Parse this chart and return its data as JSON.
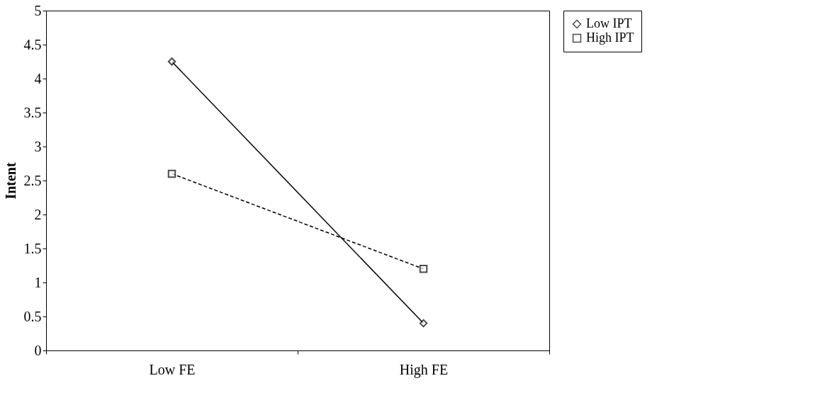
{
  "chart_data": {
    "type": "line",
    "ylabel": "Intent",
    "categories": [
      "Low FE",
      "High FE"
    ],
    "series": [
      {
        "name": "Low IPT",
        "color": "#000000",
        "values": [
          4.25,
          0.4
        ],
        "marker": "diamond",
        "line_style": "solid"
      },
      {
        "name": "High IPT",
        "color": "#000000",
        "values": [
          2.6,
          1.2
        ],
        "marker": "square",
        "line_style": "dashed"
      }
    ],
    "ylim": [
      0,
      5
    ],
    "yticks": [
      0,
      0.5,
      1,
      1.5,
      2,
      2.5,
      3,
      3.5,
      4,
      4.5,
      5
    ],
    "grid": false,
    "legend": "right"
  }
}
